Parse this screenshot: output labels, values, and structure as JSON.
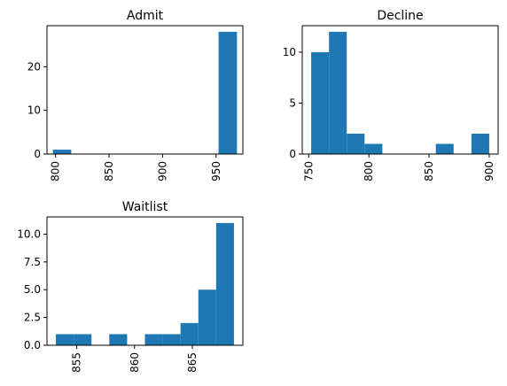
{
  "chart_data": [
    {
      "type": "bar",
      "subtype": "histogram",
      "title": "Admit",
      "color": "#1f77b4",
      "bin_edges": [
        797.5,
        814.7,
        831.9,
        849.1,
        866.3,
        883.5,
        900.7,
        917.9,
        935.1,
        952.3,
        969.5
      ],
      "counts": [
        1,
        0,
        0,
        0,
        0,
        0,
        0,
        0,
        0,
        28
      ],
      "xlim": [
        792,
        975
      ],
      "ylim": [
        0,
        29.4
      ],
      "xticks": [
        800,
        850,
        900,
        950
      ],
      "yticks": [
        0,
        10,
        20
      ],
      "xtick_rotation": 90
    },
    {
      "type": "bar",
      "subtype": "histogram",
      "title": "Decline",
      "color": "#1f77b4",
      "bin_edges": [
        752,
        766.8,
        781.6,
        796.4,
        811.2,
        826,
        840.8,
        855.6,
        870.4,
        885.2,
        900
      ],
      "counts": [
        10,
        12,
        2,
        1,
        0,
        0,
        0,
        1,
        0,
        2
      ],
      "xlim": [
        744.6,
        907.4
      ],
      "ylim": [
        0,
        12.6
      ],
      "xticks": [
        750,
        800,
        850,
        900
      ],
      "yticks": [
        0,
        5,
        10
      ],
      "xtick_rotation": 90
    },
    {
      "type": "bar",
      "subtype": "histogram",
      "title": "Waitlist",
      "color": "#1f77b4",
      "bin_edges": [
        853.2,
        854.74,
        856.28,
        857.82,
        859.36,
        860.9,
        862.44,
        863.98,
        865.52,
        867.06,
        868.6
      ],
      "counts": [
        1,
        1,
        0,
        1,
        0,
        1,
        1,
        2,
        5,
        11
      ],
      "xlim": [
        852.43,
        869.37
      ],
      "ylim": [
        0,
        11.55
      ],
      "xticks": [
        855,
        860,
        865
      ],
      "yticks": [
        "0.0",
        "2.5",
        "5.0",
        "7.5",
        "10.0"
      ],
      "xtick_rotation": 90
    }
  ]
}
